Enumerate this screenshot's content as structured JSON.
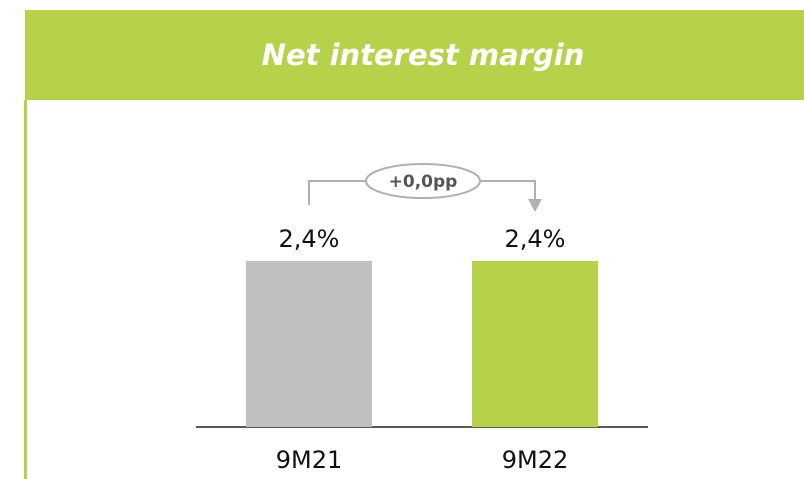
{
  "chart_data": {
    "type": "bar",
    "title": "Net interest margin",
    "categories": [
      "9M21",
      "9M22"
    ],
    "values": [
      2.4,
      2.4
    ],
    "value_labels": [
      "2,4%",
      "2,4%"
    ],
    "colors": [
      "#c0c0c0",
      "#b5d24a"
    ],
    "annotation": "+0,0pp"
  }
}
